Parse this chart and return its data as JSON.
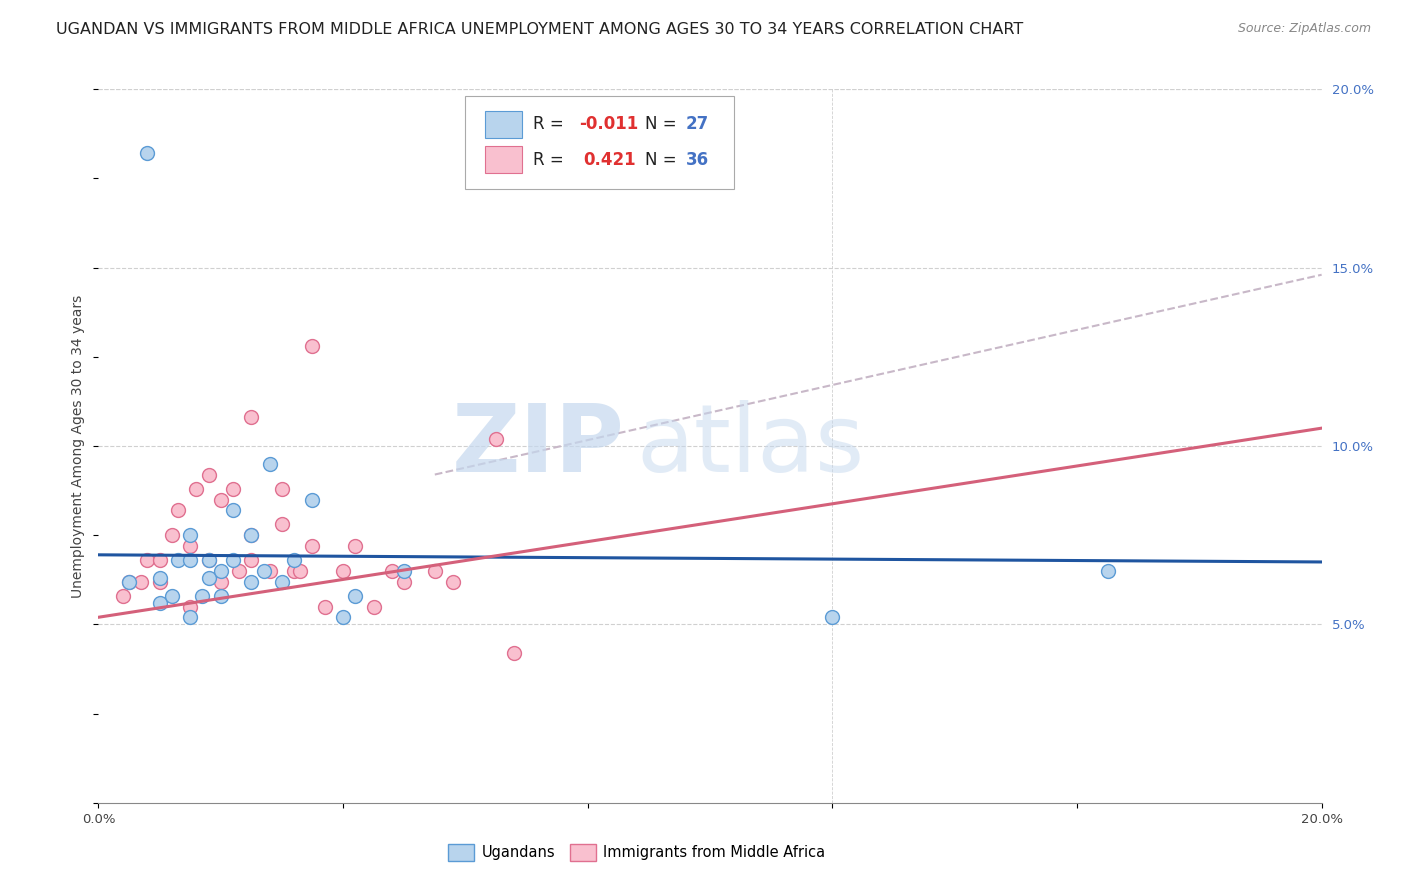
{
  "title": "UGANDAN VS IMMIGRANTS FROM MIDDLE AFRICA UNEMPLOYMENT AMONG AGES 30 TO 34 YEARS CORRELATION CHART",
  "source": "Source: ZipAtlas.com",
  "ylabel": "Unemployment Among Ages 30 to 34 years",
  "xlim": [
    0.0,
    0.2
  ],
  "ylim": [
    0.0,
    0.2
  ],
  "background_color": "#ffffff",
  "watermark_zip": "ZIP",
  "watermark_atlas": "atlas",
  "ugandans_color": "#b8d4ed",
  "immigrants_color": "#f9c0cf",
  "ugandans_edge_color": "#5b9bd5",
  "immigrants_edge_color": "#e07090",
  "blue_line_color": "#1f55a0",
  "pink_line_color": "#d4607a",
  "dashed_line_color": "#c8b8c8",
  "grid_color": "#d0d0d0",
  "ugandans_x": [
    0.005,
    0.01,
    0.01,
    0.012,
    0.013,
    0.015,
    0.015,
    0.015,
    0.017,
    0.018,
    0.018,
    0.02,
    0.02,
    0.022,
    0.022,
    0.025,
    0.025,
    0.027,
    0.028,
    0.03,
    0.032,
    0.035,
    0.04,
    0.042,
    0.05,
    0.12,
    0.165
  ],
  "ugandans_y": [
    0.062,
    0.056,
    0.063,
    0.058,
    0.068,
    0.052,
    0.068,
    0.075,
    0.058,
    0.063,
    0.068,
    0.058,
    0.065,
    0.068,
    0.082,
    0.062,
    0.075,
    0.065,
    0.095,
    0.062,
    0.068,
    0.085,
    0.052,
    0.058,
    0.065,
    0.052,
    0.065
  ],
  "ugandans_outlier_x": [
    0.008
  ],
  "ugandans_outlier_y": [
    0.182
  ],
  "immigrants_x": [
    0.004,
    0.005,
    0.007,
    0.008,
    0.01,
    0.01,
    0.012,
    0.013,
    0.015,
    0.015,
    0.016,
    0.018,
    0.018,
    0.02,
    0.02,
    0.022,
    0.023,
    0.025,
    0.025,
    0.025,
    0.028,
    0.03,
    0.03,
    0.032,
    0.033,
    0.035,
    0.037,
    0.04,
    0.042,
    0.045,
    0.048,
    0.05,
    0.055,
    0.058,
    0.065,
    0.068
  ],
  "immigrants_y": [
    0.058,
    0.062,
    0.062,
    0.068,
    0.062,
    0.068,
    0.075,
    0.082,
    0.055,
    0.072,
    0.088,
    0.092,
    0.068,
    0.062,
    0.085,
    0.088,
    0.065,
    0.068,
    0.075,
    0.108,
    0.065,
    0.078,
    0.088,
    0.065,
    0.065,
    0.072,
    0.055,
    0.065,
    0.072,
    0.055,
    0.065,
    0.062,
    0.065,
    0.062,
    0.102,
    0.042
  ],
  "immigrants_outlier_x": [
    0.035
  ],
  "immigrants_outlier_y": [
    0.128
  ],
  "blue_line_x": [
    0.0,
    0.2
  ],
  "blue_line_y": [
    0.0695,
    0.0675
  ],
  "pink_line_x": [
    0.0,
    0.2
  ],
  "pink_line_y": [
    0.052,
    0.105
  ],
  "dashed_line_x": [
    0.055,
    0.2
  ],
  "dashed_line_y": [
    0.092,
    0.148
  ],
  "marker_size": 100,
  "title_fontsize": 11.5,
  "axis_label_fontsize": 10,
  "tick_fontsize": 9.5,
  "legend_R_blue": "-0.011",
  "legend_N_blue": "27",
  "legend_R_pink": "0.421",
  "legend_N_pink": "36"
}
